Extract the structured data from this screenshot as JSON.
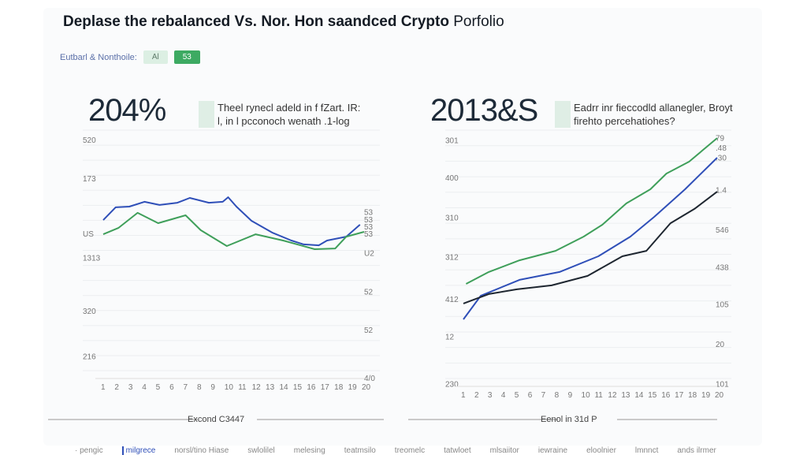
{
  "header": {
    "title_bold": "Deplase the rebalanced Vs. Nor. Hon saandced Crypto",
    "title_light": "Porfolio"
  },
  "legend": {
    "label": "Eutbarl & Nonthoile:",
    "chip_a": "Al",
    "chip_b": "53"
  },
  "colors": {
    "blue": "#2f4fb8",
    "green": "#3f9f5a",
    "black": "#1e2630",
    "grid": "#eceef0"
  },
  "chart_data": [
    {
      "type": "line",
      "big_value": "204%",
      "description": [
        "Theel rynecl adeld in f fZart. IR:",
        "l, in l pcconoch wenath .1-log"
      ],
      "xlabel": "Excond C3447",
      "xlim": [
        1,
        20
      ],
      "ylim": [
        0,
        100
      ],
      "left_ticks": [
        {
          "v": 96,
          "t": "520"
        },
        {
          "v": 80,
          "t": "173"
        },
        {
          "v": 57,
          "t": "US"
        },
        {
          "v": 47,
          "t": "1313"
        },
        {
          "v": 25,
          "t": "320"
        },
        {
          "v": 6,
          "t": "216"
        }
      ],
      "right_ticks": [
        {
          "v": 66,
          "t": "53"
        },
        {
          "v": 63,
          "t": "53"
        },
        {
          "v": 60,
          "t": "53"
        },
        {
          "v": 57,
          "t": "53"
        },
        {
          "v": 49,
          "t": "U2"
        },
        {
          "v": 33,
          "t": "52"
        },
        {
          "v": 17,
          "t": "52"
        },
        {
          "v": -3,
          "t": "4/0"
        }
      ],
      "series": [
        {
          "color": "blue",
          "points": [
            [
              1,
              62.6
            ],
            [
              1.9,
              67.9
            ],
            [
              2.9,
              68.2
            ],
            [
              4,
              70.2
            ],
            [
              5.1,
              68.9
            ],
            [
              6.4,
              69.8
            ],
            [
              7.3,
              71.8
            ],
            [
              8.7,
              69.8
            ],
            [
              9.7,
              70.2
            ],
            [
              10.1,
              72.1
            ],
            [
              10.7,
              68.2
            ],
            [
              11.8,
              62.3
            ],
            [
              13.3,
              57.4
            ],
            [
              14.7,
              54.1
            ],
            [
              15.6,
              52.5
            ],
            [
              16.7,
              52.1
            ],
            [
              17.3,
              54.1
            ],
            [
              18.7,
              55.7
            ],
            [
              19.7,
              60.7
            ]
          ]
        },
        {
          "color": "green",
          "points": [
            [
              1,
              56.7
            ],
            [
              2.1,
              59.3
            ],
            [
              3.5,
              65.6
            ],
            [
              5,
              61.3
            ],
            [
              7,
              64.6
            ],
            [
              8.1,
              58.4
            ],
            [
              10,
              51.8
            ],
            [
              12.1,
              56.7
            ],
            [
              14.1,
              54.1
            ],
            [
              16.4,
              50.5
            ],
            [
              17.9,
              50.8
            ],
            [
              18.7,
              55.7
            ],
            [
              20,
              57.7
            ]
          ]
        }
      ]
    },
    {
      "type": "line",
      "big_value": "2013&S",
      "description": [
        "Eadrr inr fieccodld allanegler, Broyt",
        "firehto percehatiohes?"
      ],
      "xlabel": "Eenol in 31d P",
      "xlim": [
        1,
        20
      ],
      "ylim": [
        0,
        100
      ],
      "left_ticks": [
        {
          "v": 96,
          "t": "301"
        },
        {
          "v": 81,
          "t": "400"
        },
        {
          "v": 65,
          "t": "310"
        },
        {
          "v": 49,
          "t": "312"
        },
        {
          "v": 32,
          "t": "412"
        },
        {
          "v": 17,
          "t": "12"
        },
        {
          "v": -2,
          "t": "230"
        }
      ],
      "right_ticks": [
        {
          "v": 97,
          "t": "79"
        },
        {
          "v": 93,
          "t": ".48"
        },
        {
          "v": 89,
          "t": ".30"
        },
        {
          "v": 76,
          "t": "1.4"
        },
        {
          "v": 60,
          "t": "546"
        },
        {
          "v": 45,
          "t": "438"
        },
        {
          "v": 30,
          "t": "105"
        },
        {
          "v": 14,
          "t": "20"
        },
        {
          "v": -2,
          "t": "101"
        }
      ],
      "series": [
        {
          "color": "green",
          "points": [
            [
              1.2,
              38.1
            ],
            [
              2.9,
              42.9
            ],
            [
              5.2,
              47.6
            ],
            [
              7.9,
              51.4
            ],
            [
              10,
              57.1
            ],
            [
              11.4,
              61.9
            ],
            [
              13.2,
              70.5
            ],
            [
              15,
              76.2
            ],
            [
              16.2,
              82.5
            ],
            [
              17.9,
              87.3
            ],
            [
              20,
              96.8
            ]
          ]
        },
        {
          "color": "blue",
          "points": [
            [
              1,
              23.8
            ],
            [
              2.3,
              33.3
            ],
            [
              5.2,
              39.7
            ],
            [
              8.2,
              42.9
            ],
            [
              11.1,
              49.2
            ],
            [
              13.5,
              57.1
            ],
            [
              15.3,
              65.1
            ],
            [
              17.6,
              76.2
            ],
            [
              20,
              88.9
            ]
          ]
        },
        {
          "color": "black",
          "points": [
            [
              1,
              30.2
            ],
            [
              2.9,
              34
            ],
            [
              5,
              35.9
            ],
            [
              7.6,
              37.5
            ],
            [
              10.3,
              41.3
            ],
            [
              12.9,
              49.2
            ],
            [
              14.7,
              51.4
            ],
            [
              16.5,
              62.5
            ],
            [
              18.3,
              68.3
            ],
            [
              20,
              75.2
            ]
          ]
        }
      ]
    }
  ],
  "nav": [
    "· pengic",
    "milgrece",
    "norsl/tino Hiase",
    "swlolilel",
    "melesing",
    "teatmsilo",
    "treomelc",
    "tatwloet",
    "mlsaiitor",
    "iewraine",
    "eloolnier",
    "lmnnct",
    "ands ilrmer"
  ]
}
